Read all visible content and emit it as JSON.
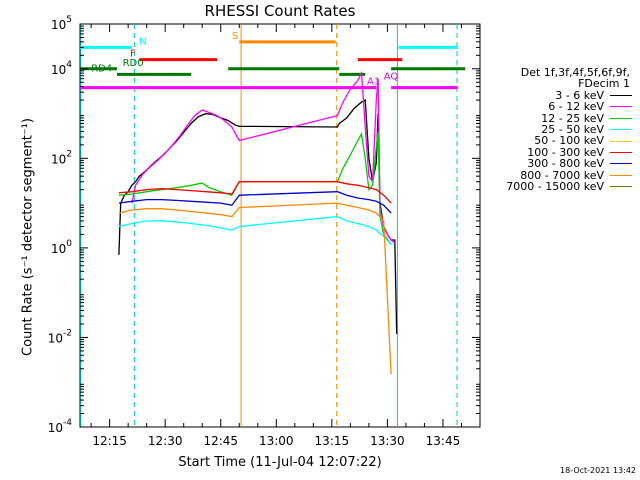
{
  "chart_data": {
    "type": "line",
    "title": "RHESSI Count Rates",
    "xlabel": "Start Time (11-Jul-04 12:07:22)",
    "ylabel": "Count Rate (s⁻¹ detector segment⁻¹)",
    "yscale": "log",
    "ylim": [
      0.0001,
      100000
    ],
    "xlim_minutes": [
      0,
      108
    ],
    "x_tick_labels": [
      "12:15",
      "12:30",
      "12:45",
      "13:00",
      "13:15",
      "13:30",
      "13:45"
    ],
    "x_tick_minutes": [
      8,
      23,
      38,
      53,
      68,
      83,
      98
    ],
    "y_tick_labels": [
      {
        "base": "10",
        "exp": "-4",
        "value": 0.0001
      },
      {
        "base": "10",
        "exp": "-2",
        "value": 0.01
      },
      {
        "base": "10",
        "exp": "0",
        "value": 1
      },
      {
        "base": "10",
        "exp": "2",
        "value": 100
      },
      {
        "base": "10",
        "exp": "4",
        "value": 10000
      },
      {
        "base": "10",
        "exp": "5",
        "value": 100000
      }
    ],
    "legend_header": [
      "Det 1f,3f,4f,5f,6f,9f,",
      "FDecim 1"
    ],
    "series": [
      {
        "name": "3 - 6 keV",
        "color": "#000000"
      },
      {
        "name": "6 - 12 keV",
        "color": "#ff00ff"
      },
      {
        "name": "12 - 25 keV",
        "color": "#00cc00"
      },
      {
        "name": "25 - 50 keV",
        "color": "#00ffff"
      },
      {
        "name": "50 - 100 keV",
        "color": "#ffcc00"
      },
      {
        "name": "100 - 300 keV",
        "color": "#ff0000"
      },
      {
        "name": "300 - 800 keV",
        "color": "#0000cc"
      },
      {
        "name": "800 - 7000 keV",
        "color": "#ff8800"
      },
      {
        "name": "7000 - 15000 keV",
        "color": "#667700"
      }
    ],
    "flag_bars": [
      {
        "label": "N",
        "color": "#00ffff",
        "segments": [
          [
            -1,
            14
          ],
          [
            86,
            102
          ]
        ],
        "level": 30000
      },
      {
        "label": "F",
        "color": "#ff0000",
        "segments": [
          [
            16,
            37
          ],
          [
            75,
            87
          ]
        ],
        "level": 16000
      },
      {
        "label": "S",
        "color": "#ff8800",
        "segments": [
          [
            43,
            69
          ]
        ],
        "level": 40000
      },
      {
        "label": "RD0",
        "color": "#007700",
        "segments": [
          [
            -1,
            10
          ],
          [
            40,
            70
          ],
          [
            84,
            104
          ]
        ],
        "level": 10000
      },
      {
        "label": "RD4",
        "color": "#007700",
        "segments": [
          [
            10,
            30
          ],
          [
            70,
            77
          ]
        ],
        "level": 7500
      },
      {
        "label": "AQ",
        "color": "#dd00dd",
        "segments": [],
        "level": 5000
      },
      {
        "label": "A1",
        "color": "#ff00ff",
        "segments": [
          [
            -1,
            80
          ],
          [
            84,
            102
          ]
        ],
        "level": 3800
      }
    ],
    "vertical_markers": [
      {
        "minute": 14.7,
        "color": "#00cccc",
        "style": "dashed"
      },
      {
        "minute": 43.5,
        "color": "#ff8800",
        "style": "solid"
      },
      {
        "minute": 69.3,
        "color": "#ff8800",
        "style": "dashed"
      },
      {
        "minute": 85.7,
        "color": "#00cccc",
        "style": "solid"
      },
      {
        "minute": 101.8,
        "color": "#00cccc",
        "style": "dashed"
      },
      {
        "minute": 0.2,
        "color": "#00cccc",
        "style": "solid"
      }
    ],
    "curves": [
      {
        "name": "3 - 6 keV",
        "points": [
          [
            10.5,
            0.7
          ],
          [
            11,
            10
          ],
          [
            12,
            15
          ],
          [
            13,
            18
          ],
          [
            14,
            25
          ],
          [
            15,
            30
          ],
          [
            16,
            40
          ],
          [
            18,
            55
          ],
          [
            20,
            80
          ],
          [
            22,
            110
          ],
          [
            24,
            160
          ],
          [
            26,
            240
          ],
          [
            28,
            380
          ],
          [
            30,
            600
          ],
          [
            32,
            850
          ],
          [
            34,
            1000
          ],
          [
            36,
            950
          ],
          [
            38,
            800
          ],
          [
            40,
            700
          ],
          [
            41,
            620
          ],
          [
            42,
            550
          ],
          [
            43,
            520
          ],
          [
            69.5,
            500
          ],
          [
            70,
            600
          ],
          [
            72,
            800
          ],
          [
            74,
            1300
          ],
          [
            76,
            1800
          ],
          [
            77,
            2000
          ],
          [
            78,
            100
          ],
          [
            79,
            30
          ],
          [
            80,
            80
          ],
          [
            80.5,
            1000
          ],
          [
            81,
            10
          ],
          [
            82,
            3
          ],
          [
            83,
            2
          ],
          [
            84,
            1.5
          ],
          [
            85,
            1.5
          ],
          [
            85.5,
            0.012
          ]
        ]
      },
      {
        "name": "6 - 12 keV",
        "points": [
          [
            14,
            10
          ],
          [
            15,
            25
          ],
          [
            17,
            45
          ],
          [
            19,
            65
          ],
          [
            21,
            90
          ],
          [
            23,
            130
          ],
          [
            25,
            200
          ],
          [
            27,
            320
          ],
          [
            29,
            550
          ],
          [
            31,
            900
          ],
          [
            33,
            1200
          ],
          [
            35,
            1050
          ],
          [
            37,
            900
          ],
          [
            39,
            700
          ],
          [
            41,
            500
          ],
          [
            42,
            350
          ],
          [
            43,
            250
          ],
          [
            69.5,
            900
          ],
          [
            71,
            1800
          ],
          [
            73,
            3500
          ],
          [
            75,
            5500
          ],
          [
            76,
            8000
          ],
          [
            77,
            500
          ],
          [
            78,
            40
          ],
          [
            79,
            30
          ],
          [
            80,
            2000
          ],
          [
            80.5,
            6000
          ],
          [
            81,
            8
          ],
          [
            82,
            3
          ],
          [
            83,
            2
          ],
          [
            84,
            1.5
          ],
          [
            85,
            1.3
          ]
        ]
      },
      {
        "name": "12 - 25 keV",
        "points": [
          [
            10.5,
            15
          ],
          [
            14,
            16
          ],
          [
            18,
            18
          ],
          [
            22,
            20
          ],
          [
            26,
            22
          ],
          [
            30,
            25
          ],
          [
            33,
            28
          ],
          [
            35,
            22
          ],
          [
            38,
            18
          ],
          [
            41,
            15
          ],
          [
            43,
            30
          ],
          [
            69.5,
            30
          ],
          [
            71,
            60
          ],
          [
            73,
            120
          ],
          [
            75,
            250
          ],
          [
            76,
            350
          ],
          [
            77,
            100
          ],
          [
            78,
            20
          ],
          [
            79,
            25
          ],
          [
            80,
            180
          ],
          [
            80.5,
            400
          ],
          [
            81,
            5
          ],
          [
            82,
            2
          ],
          [
            84,
            1.2
          ]
        ]
      },
      {
        "name": "25 - 50 keV",
        "points": [
          [
            10.5,
            3
          ],
          [
            14,
            3.5
          ],
          [
            18,
            4
          ],
          [
            22,
            4
          ],
          [
            26,
            3.8
          ],
          [
            30,
            3.5
          ],
          [
            34,
            3.2
          ],
          [
            38,
            2.8
          ],
          [
            41,
            2.5
          ],
          [
            43,
            3
          ],
          [
            69.5,
            5
          ],
          [
            72,
            4
          ],
          [
            75,
            3.5
          ],
          [
            78,
            3
          ],
          [
            80,
            2.5
          ],
          [
            82,
            1.8
          ],
          [
            84,
            1.2
          ]
        ]
      },
      {
        "name": "100 - 300 keV",
        "points": [
          [
            10.5,
            17
          ],
          [
            14,
            18
          ],
          [
            18,
            20
          ],
          [
            22,
            21
          ],
          [
            26,
            20
          ],
          [
            30,
            19
          ],
          [
            34,
            18
          ],
          [
            38,
            17
          ],
          [
            41,
            16
          ],
          [
            43,
            30
          ],
          [
            69.5,
            30
          ],
          [
            72,
            27
          ],
          [
            75,
            25
          ],
          [
            78,
            22
          ],
          [
            80,
            20
          ],
          [
            82,
            15
          ],
          [
            84,
            10
          ]
        ]
      },
      {
        "name": "300 - 800 keV",
        "points": [
          [
            10.5,
            10
          ],
          [
            14,
            11
          ],
          [
            18,
            12
          ],
          [
            22,
            12
          ],
          [
            26,
            11.5
          ],
          [
            30,
            11
          ],
          [
            34,
            10.5
          ],
          [
            38,
            10
          ],
          [
            41,
            9
          ],
          [
            43,
            15
          ],
          [
            69.5,
            18
          ],
          [
            72,
            15
          ],
          [
            75,
            13
          ],
          [
            78,
            12
          ],
          [
            80,
            11
          ],
          [
            82,
            9
          ],
          [
            84,
            6
          ]
        ]
      },
      {
        "name": "800 - 7000 keV",
        "points": [
          [
            10.5,
            6
          ],
          [
            14,
            7
          ],
          [
            18,
            7.5
          ],
          [
            22,
            7.5
          ],
          [
            26,
            7
          ],
          [
            30,
            6.5
          ],
          [
            34,
            6
          ],
          [
            38,
            5.5
          ],
          [
            41,
            5
          ],
          [
            43,
            8
          ],
          [
            69.5,
            10
          ],
          [
            72,
            9
          ],
          [
            75,
            8
          ],
          [
            78,
            7
          ],
          [
            80,
            6
          ],
          [
            82,
            4
          ],
          [
            84,
            0.0015
          ]
        ]
      }
    ]
  },
  "footer": {
    "timestamp": "18-Oct-2021 13:42"
  }
}
